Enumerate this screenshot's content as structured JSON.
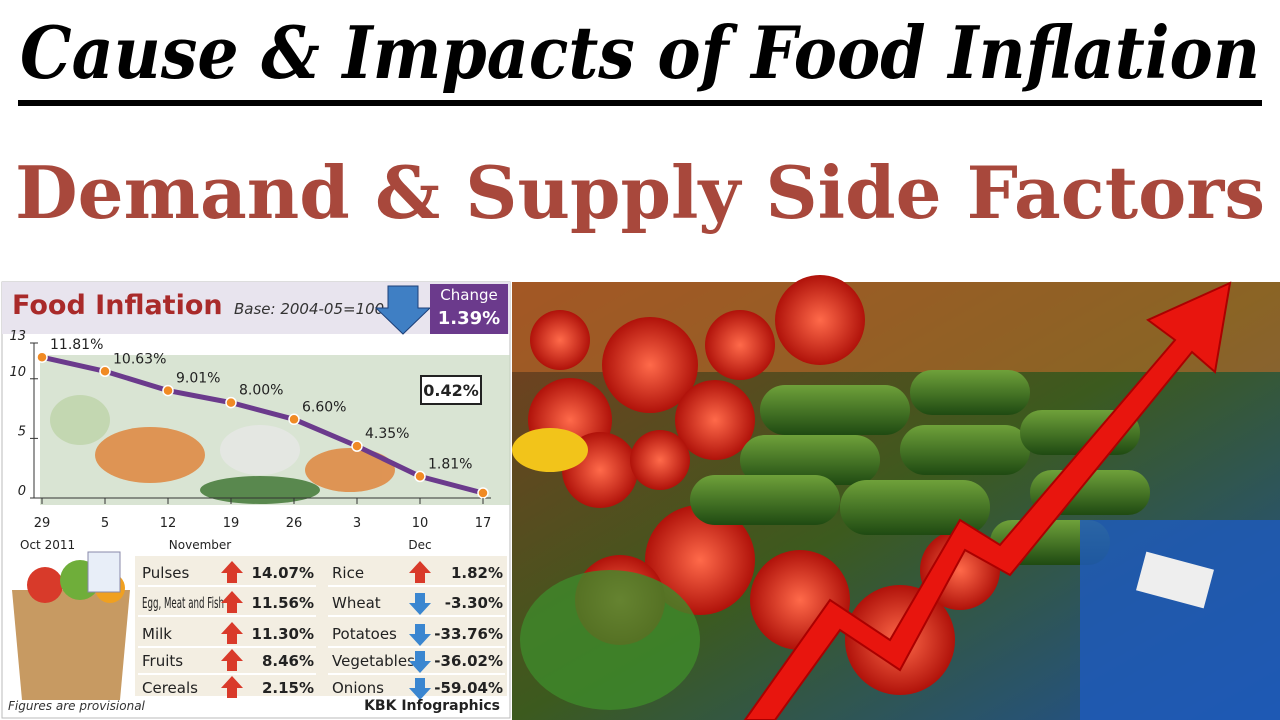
{
  "header": {
    "title": "Cause & Impacts of Food Inflation",
    "subtitle": "Demand & Supply Side Factors"
  },
  "chart_data": {
    "type": "line",
    "title": "Food Inflation",
    "subtitle": "Base: 2004-05=100",
    "change_label": "Change",
    "change_value": "1.39%",
    "categories": [
      "29",
      "5",
      "12",
      "19",
      "26",
      "3",
      "10",
      "17"
    ],
    "periods": [
      "Oct 2011",
      "November",
      "Dec"
    ],
    "values": [
      11.81,
      10.63,
      9.01,
      8.0,
      6.6,
      4.35,
      1.81,
      0.42
    ],
    "value_labels": [
      "11.81%",
      "10.63%",
      "9.01%",
      "8.00%",
      "6.60%",
      "4.35%",
      "1.81%",
      "0.42%"
    ],
    "color": "#6b3a8c",
    "marker_color": "#f08a24",
    "ylim": [
      0,
      13
    ],
    "yticks": [
      0,
      5,
      10,
      13
    ]
  },
  "items": {
    "left": [
      [
        "Pulses",
        "14.07%"
      ],
      [
        "Egg, Meat and Fish",
        "11.56%"
      ],
      [
        "Milk",
        "11.30%"
      ],
      [
        "Fruits",
        "8.46%"
      ],
      [
        "Cereals",
        "2.15%"
      ]
    ],
    "right": [
      [
        "Rice",
        "1.82%"
      ],
      [
        "Wheat",
        "-3.30%"
      ],
      [
        "Potatoes",
        "-33.76%"
      ],
      [
        "Vegetables",
        "-36.02%"
      ],
      [
        "Onions",
        "-59.04%"
      ]
    ]
  },
  "footer": {
    "note": "Figures are provisional",
    "credit": "KBK Infographics"
  }
}
